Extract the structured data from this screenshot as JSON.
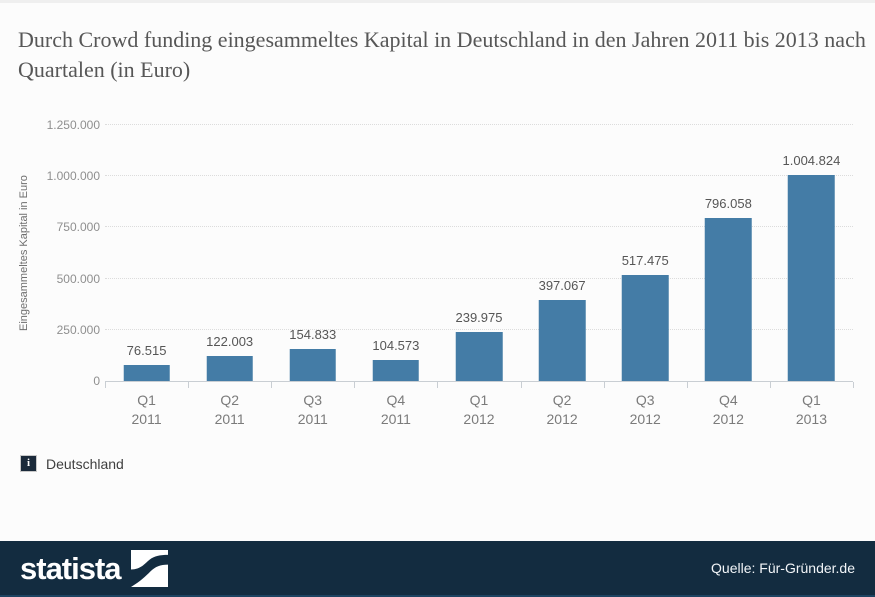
{
  "chart_data": {
    "type": "bar",
    "title": "Durch Crowd funding eingesammeltes Kapital in Deutschland in den Jahren 2011 bis 2013 nach Quartalen (in Euro)",
    "ylabel": "Eingesammeltes Kapital in Euro",
    "xlabel": "",
    "categories": [
      {
        "quarter": "Q1",
        "year": "2011"
      },
      {
        "quarter": "Q2",
        "year": "2011"
      },
      {
        "quarter": "Q3",
        "year": "2011"
      },
      {
        "quarter": "Q4",
        "year": "2011"
      },
      {
        "quarter": "Q1",
        "year": "2012"
      },
      {
        "quarter": "Q2",
        "year": "2012"
      },
      {
        "quarter": "Q3",
        "year": "2012"
      },
      {
        "quarter": "Q4",
        "year": "2012"
      },
      {
        "quarter": "Q1",
        "year": "2013"
      }
    ],
    "values": [
      76515,
      122003,
      154833,
      104573,
      239975,
      397067,
      517475,
      796058,
      1004824
    ],
    "value_labels": [
      "76.515",
      "122.003",
      "154.833",
      "104.573",
      "239.975",
      "397.067",
      "517.475",
      "796.058",
      "1.004.824"
    ],
    "ylim": [
      0,
      1250000
    ],
    "yticks": [
      {
        "value": 0,
        "label": "0"
      },
      {
        "value": 250000,
        "label": "250.000"
      },
      {
        "value": 500000,
        "label": "500.000"
      },
      {
        "value": 750000,
        "label": "750.000"
      },
      {
        "value": 1000000,
        "label": "1.000.000"
      },
      {
        "value": 1250000,
        "label": "1.250.000"
      }
    ],
    "grid": "horizontal-dotted",
    "legend_position": "bottom-left",
    "bar_color": "#447ca6"
  },
  "legend": {
    "label": "Deutschland",
    "icon_glyph": "i"
  },
  "footer": {
    "brand": "statista",
    "source": "Quelle: Für-Gründer.de"
  },
  "colors": {
    "bar": "#447ca6",
    "footer_background": "#132c40",
    "footer_strip": "#1d4361",
    "grid": "#dcdcdc",
    "axis": "#c9ced3",
    "title_text": "#575757"
  }
}
